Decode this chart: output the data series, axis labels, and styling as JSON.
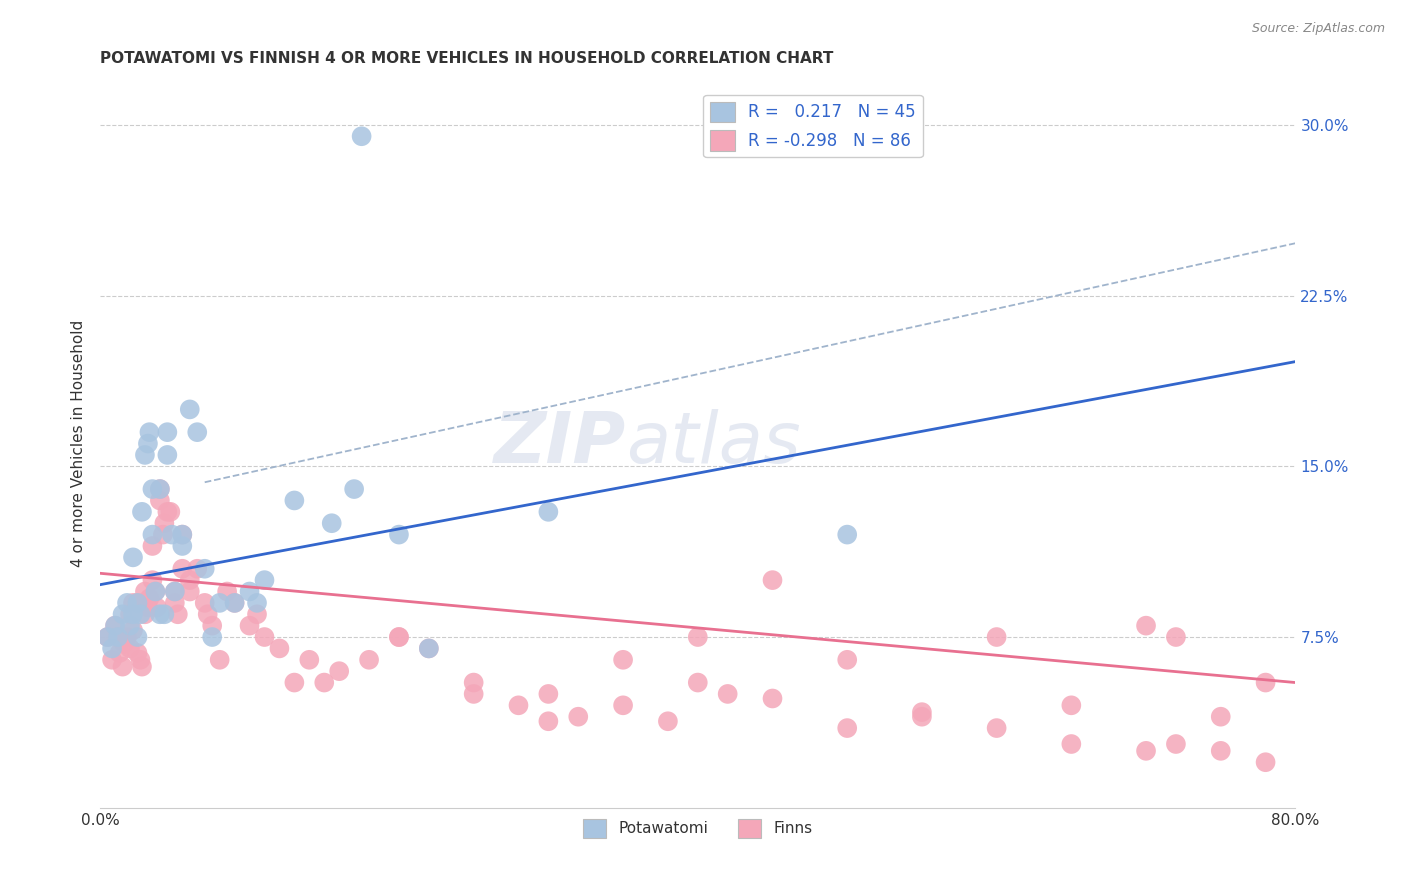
{
  "title": "POTAWATOMI VS FINNISH 4 OR MORE VEHICLES IN HOUSEHOLD CORRELATION CHART",
  "source": "Source: ZipAtlas.com",
  "ylabel": "4 or more Vehicles in Household",
  "xlim": [
    0.0,
    0.8
  ],
  "ylim": [
    0.0,
    0.32
  ],
  "x_ticks": [
    0.0,
    0.1,
    0.2,
    0.3,
    0.4,
    0.5,
    0.6,
    0.7,
    0.8
  ],
  "y_ticks_right": [
    0.075,
    0.15,
    0.225,
    0.3
  ],
  "y_tick_labels_right": [
    "7.5%",
    "15.0%",
    "22.5%",
    "30.0%"
  ],
  "watermark": "ZIPatlas",
  "potawatomi_color": "#a8c4e0",
  "finns_color": "#f4a7b9",
  "blue_line_color": "#3366cc",
  "pink_line_color": "#e87090",
  "dashed_line_color": "#a0b4cc",
  "legend_blue_fill": "#a8c4e0",
  "legend_pink_fill": "#f4a7b9",
  "R_potawatomi": 0.217,
  "N_potawatomi": 45,
  "R_finns": -0.298,
  "N_finns": 86,
  "blue_line_x0": 0.0,
  "blue_line_y0": 0.098,
  "blue_line_x1": 0.8,
  "blue_line_y1": 0.196,
  "pink_line_x0": 0.0,
  "pink_line_y0": 0.103,
  "pink_line_x1": 0.8,
  "pink_line_y1": 0.055,
  "dash_line_x0": 0.07,
  "dash_line_y0": 0.143,
  "dash_line_x1": 0.8,
  "dash_line_y1": 0.248,
  "potawatomi_x": [
    0.005,
    0.008,
    0.01,
    0.012,
    0.015,
    0.018,
    0.02,
    0.022,
    0.022,
    0.025,
    0.025,
    0.027,
    0.028,
    0.03,
    0.032,
    0.033,
    0.035,
    0.035,
    0.037,
    0.04,
    0.04,
    0.043,
    0.045,
    0.045,
    0.048,
    0.05,
    0.055,
    0.055,
    0.06,
    0.065,
    0.07,
    0.075,
    0.08,
    0.09,
    0.1,
    0.105,
    0.11,
    0.13,
    0.155,
    0.175,
    0.2,
    0.22,
    0.3,
    0.5,
    0.17
  ],
  "potawatomi_y": [
    0.075,
    0.07,
    0.08,
    0.075,
    0.085,
    0.09,
    0.08,
    0.085,
    0.11,
    0.075,
    0.09,
    0.085,
    0.13,
    0.155,
    0.16,
    0.165,
    0.14,
    0.12,
    0.095,
    0.085,
    0.14,
    0.085,
    0.155,
    0.165,
    0.12,
    0.095,
    0.115,
    0.12,
    0.175,
    0.165,
    0.105,
    0.075,
    0.09,
    0.09,
    0.095,
    0.09,
    0.1,
    0.135,
    0.125,
    0.295,
    0.12,
    0.07,
    0.13,
    0.12,
    0.14
  ],
  "finns_x": [
    0.005,
    0.008,
    0.01,
    0.012,
    0.013,
    0.015,
    0.016,
    0.018,
    0.02,
    0.02,
    0.022,
    0.022,
    0.025,
    0.025,
    0.027,
    0.028,
    0.03,
    0.03,
    0.032,
    0.033,
    0.035,
    0.035,
    0.037,
    0.038,
    0.04,
    0.04,
    0.042,
    0.043,
    0.045,
    0.047,
    0.05,
    0.05,
    0.052,
    0.055,
    0.055,
    0.06,
    0.06,
    0.065,
    0.07,
    0.072,
    0.075,
    0.08,
    0.085,
    0.09,
    0.1,
    0.105,
    0.11,
    0.12,
    0.13,
    0.14,
    0.15,
    0.16,
    0.18,
    0.2,
    0.22,
    0.25,
    0.28,
    0.3,
    0.32,
    0.35,
    0.38,
    0.4,
    0.42,
    0.45,
    0.5,
    0.55,
    0.6,
    0.65,
    0.7,
    0.72,
    0.75,
    0.78,
    0.4,
    0.45,
    0.5,
    0.55,
    0.6,
    0.65,
    0.7,
    0.72,
    0.75,
    0.78,
    0.2,
    0.25,
    0.3,
    0.35
  ],
  "finns_y": [
    0.075,
    0.065,
    0.08,
    0.075,
    0.068,
    0.062,
    0.072,
    0.075,
    0.085,
    0.07,
    0.078,
    0.09,
    0.068,
    0.09,
    0.065,
    0.062,
    0.095,
    0.085,
    0.088,
    0.092,
    0.1,
    0.115,
    0.095,
    0.088,
    0.14,
    0.135,
    0.12,
    0.125,
    0.13,
    0.13,
    0.095,
    0.09,
    0.085,
    0.12,
    0.105,
    0.095,
    0.1,
    0.105,
    0.09,
    0.085,
    0.08,
    0.065,
    0.095,
    0.09,
    0.08,
    0.085,
    0.075,
    0.07,
    0.055,
    0.065,
    0.055,
    0.06,
    0.065,
    0.075,
    0.07,
    0.055,
    0.045,
    0.05,
    0.04,
    0.045,
    0.038,
    0.075,
    0.05,
    0.048,
    0.035,
    0.042,
    0.035,
    0.028,
    0.025,
    0.028,
    0.025,
    0.02,
    0.055,
    0.1,
    0.065,
    0.04,
    0.075,
    0.045,
    0.08,
    0.075,
    0.04,
    0.055,
    0.075,
    0.05,
    0.038,
    0.065
  ]
}
